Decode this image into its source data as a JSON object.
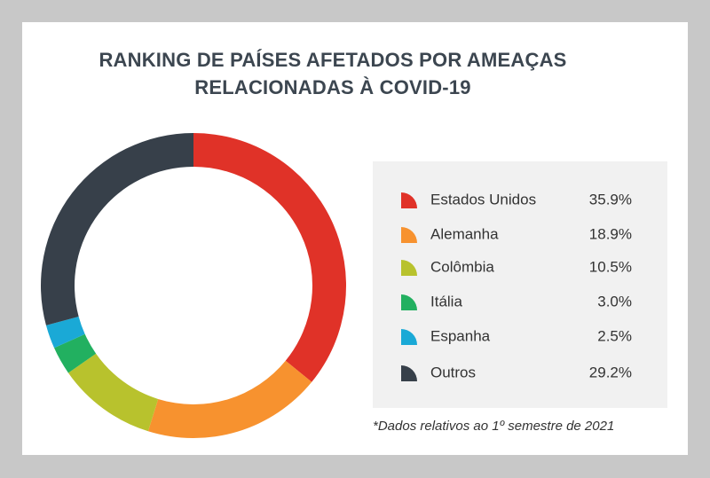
{
  "chart_data": {
    "type": "donut",
    "title": "RANKING DE PAÍSES AFETADOS POR AMEAÇAS RELACIONADAS À COVID-19",
    "categories": [
      "Estados Unidos",
      "Alemanha",
      "Colômbia",
      "Itália",
      "Espanha",
      "Outros"
    ],
    "values": [
      35.9,
      18.9,
      10.5,
      3.0,
      2.5,
      29.2
    ],
    "value_labels": [
      "35.9%",
      "18.9%",
      "10.5%",
      "3.0%",
      "2.5%",
      "29.2%"
    ],
    "colors": [
      "#e03228",
      "#f7922f",
      "#b8c22d",
      "#22b060",
      "#1aa9d6",
      "#37404a"
    ],
    "note": "*Dados relativos ao 1º semestre de 2021"
  }
}
